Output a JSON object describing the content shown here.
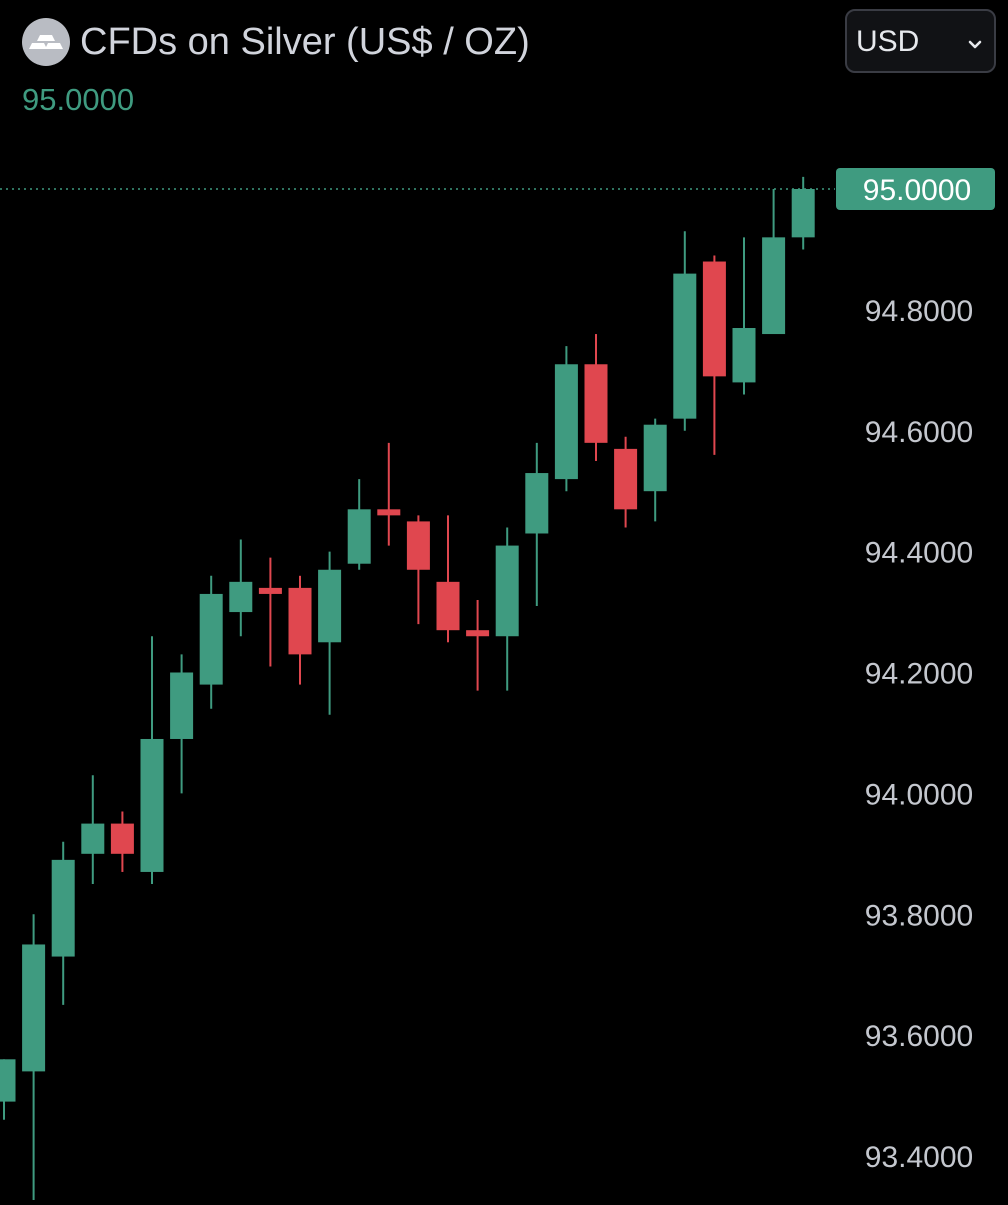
{
  "header": {
    "title": "CFDs on Silver (US$ / OZ)",
    "last_price": "95.0000",
    "logo_icon": "silver-bars-icon"
  },
  "currency": {
    "selected": "USD",
    "icon": "chevron-down-icon"
  },
  "colors": {
    "background": "#000000",
    "up": "#3f9b80",
    "down": "#e0474f",
    "axis_text": "#c4c7ce",
    "price_line": "#3f9b80"
  },
  "chart_data": {
    "type": "candlestick",
    "ylim": [
      93.32,
      95.14
    ],
    "y_ticks": [
      "95.0000",
      "94.8000",
      "94.6000",
      "94.4000",
      "94.2000",
      "94.0000",
      "93.8000",
      "93.6000",
      "93.4000"
    ],
    "y_tick_values": [
      95.0,
      94.8,
      94.6,
      94.4,
      94.2,
      94.0,
      93.8,
      93.6,
      93.4
    ],
    "current_price": 95.0,
    "current_price_label": "95.0000",
    "grid": false,
    "candles": [
      {
        "o": 93.49,
        "h": 93.56,
        "l": 93.46,
        "c": 93.56
      },
      {
        "o": 93.54,
        "h": 93.8,
        "l": 93.32,
        "c": 93.75
      },
      {
        "o": 93.73,
        "h": 93.92,
        "l": 93.65,
        "c": 93.89
      },
      {
        "o": 93.9,
        "h": 94.03,
        "l": 93.85,
        "c": 93.95
      },
      {
        "o": 93.95,
        "h": 93.97,
        "l": 93.87,
        "c": 93.9
      },
      {
        "o": 93.87,
        "h": 94.26,
        "l": 93.85,
        "c": 94.09
      },
      {
        "o": 94.09,
        "h": 94.23,
        "l": 94.0,
        "c": 94.2
      },
      {
        "o": 94.18,
        "h": 94.36,
        "l": 94.14,
        "c": 94.33
      },
      {
        "o": 94.3,
        "h": 94.42,
        "l": 94.26,
        "c": 94.35
      },
      {
        "o": 94.34,
        "h": 94.39,
        "l": 94.21,
        "c": 94.33
      },
      {
        "o": 94.34,
        "h": 94.36,
        "l": 94.18,
        "c": 94.23
      },
      {
        "o": 94.25,
        "h": 94.4,
        "l": 94.13,
        "c": 94.37
      },
      {
        "o": 94.38,
        "h": 94.52,
        "l": 94.37,
        "c": 94.47
      },
      {
        "o": 94.47,
        "h": 94.58,
        "l": 94.41,
        "c": 94.46
      },
      {
        "o": 94.45,
        "h": 94.46,
        "l": 94.28,
        "c": 94.37
      },
      {
        "o": 94.35,
        "h": 94.46,
        "l": 94.25,
        "c": 94.27
      },
      {
        "o": 94.27,
        "h": 94.32,
        "l": 94.17,
        "c": 94.26
      },
      {
        "o": 94.26,
        "h": 94.44,
        "l": 94.17,
        "c": 94.41
      },
      {
        "o": 94.43,
        "h": 94.58,
        "l": 94.31,
        "c": 94.53
      },
      {
        "o": 94.52,
        "h": 94.74,
        "l": 94.5,
        "c": 94.71
      },
      {
        "o": 94.71,
        "h": 94.76,
        "l": 94.55,
        "c": 94.58
      },
      {
        "o": 94.57,
        "h": 94.59,
        "l": 94.44,
        "c": 94.47
      },
      {
        "o": 94.5,
        "h": 94.62,
        "l": 94.45,
        "c": 94.61
      },
      {
        "o": 94.62,
        "h": 94.93,
        "l": 94.6,
        "c": 94.86
      },
      {
        "o": 94.88,
        "h": 94.89,
        "l": 94.56,
        "c": 94.69
      },
      {
        "o": 94.68,
        "h": 94.92,
        "l": 94.66,
        "c": 94.77
      },
      {
        "o": 94.76,
        "h": 95.0,
        "l": 94.76,
        "c": 94.92
      },
      {
        "o": 94.92,
        "h": 95.02,
        "l": 94.9,
        "c": 95.0
      }
    ]
  }
}
